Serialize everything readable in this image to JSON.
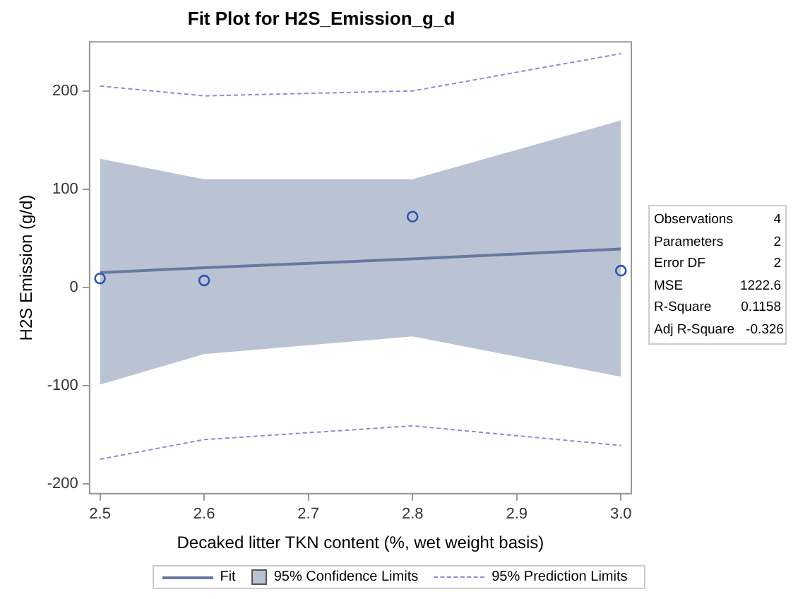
{
  "chart_data": {
    "type": "scatter",
    "title": "Fit Plot for H2S_Emission_g_d",
    "xlabel": "Decaked litter TKN content (%, wet weight basis)",
    "ylabel": "H2S Emission (g/d)",
    "xlim": [
      2.49,
      3.01
    ],
    "xticks": [
      2.5,
      2.6,
      2.7,
      2.8,
      2.9,
      {
        "value": 3,
        "label": "3.0"
      }
    ],
    "ylim": [
      -210,
      250
    ],
    "yticks": [
      -200,
      -100,
      0,
      100,
      200
    ],
    "grid": false,
    "legend": "bottom",
    "marker": "none",
    "series": [
      {
        "type": "line",
        "name": "Fit",
        "color": "#66799f",
        "line_style": "solid",
        "x": [
          2.5,
          2.6,
          2.8,
          3.0
        ],
        "values": [
          15,
          20,
          29,
          39
        ],
        "lower": [
          -99,
          -68,
          -50,
          -91
        ],
        "upper": [
          131,
          110,
          110,
          170
        ]
      },
      {
        "type": "line",
        "name": "95% Prediction Limits",
        "color": "#8a8fcf",
        "line_style": "dashed",
        "x": [
          2.5,
          2.6,
          2.8,
          3.0
        ],
        "values": [
          205,
          195,
          200,
          238
        ]
      },
      {
        "type": "line",
        "color": "#8a8fcf",
        "line_style": "dashed",
        "x": [
          2.5,
          2.6,
          2.8,
          3.0
        ],
        "values": [
          -175,
          -155,
          -141,
          -161
        ]
      },
      {
        "color": "#2f55b0",
        "marker": "circle",
        "x": [
          2.5,
          2.6,
          2.8,
          3.0
        ],
        "values": [
          9,
          7,
          72,
          17
        ]
      }
    ],
    "annotations": [
      "95% Confidence Limits",
      "Observations 4",
      "Parameters 2",
      "Error DF 2",
      "MSE 1222.6",
      "R-Square 0.1158",
      "Adj R-Square -0.326"
    ]
  }
}
